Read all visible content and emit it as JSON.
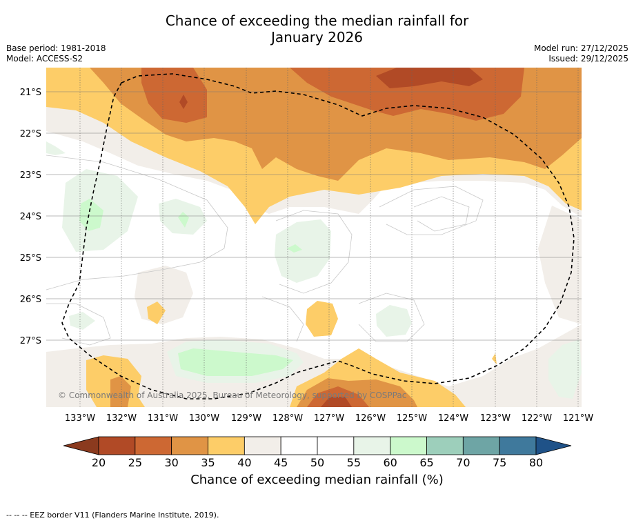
{
  "header": {
    "title_line1": "Chance of exceeding the median rainfall for",
    "title_line2": "January 2026",
    "base_period": "Base period: 1981-2018",
    "model": "Model: ACCESS-S2",
    "model_run": "Model run: 27/12/2025",
    "issued": "Issued: 29/12/2025"
  },
  "map": {
    "lat_labels": [
      "21°S",
      "22°S",
      "23°S",
      "24°S",
      "25°S",
      "26°S",
      "27°S"
    ],
    "lon_labels": [
      "133°W",
      "132°W",
      "131°W",
      "130°W",
      "129°W",
      "128°W",
      "127°W",
      "126°W",
      "125°W",
      "124°W",
      "123°W",
      "122°W",
      "121°W"
    ],
    "copyright": "© Commonwealth of Australia 2025, Bureau of Meteorology, supported by COSPPac"
  },
  "colorbar": {
    "ticks": [
      "20",
      "25",
      "30",
      "35",
      "40",
      "45",
      "50",
      "55",
      "60",
      "65",
      "70",
      "75",
      "80"
    ],
    "colors": [
      "#8b3a1e",
      "#b14a26",
      "#cd6833",
      "#e09445",
      "#fdcd68",
      "#f2eee9",
      "#ffffff",
      "#ffffff",
      "#e8f4e8",
      "#ccf9cc",
      "#9dcfbb",
      "#6ea5a5",
      "#3f799c",
      "#1f5288"
    ],
    "label": "Chance of exceeding median rainfall (%)"
  },
  "footer": {
    "legend": "-- -- -- EEZ border V11 (Flanders Marine Institute, 2019)."
  }
}
